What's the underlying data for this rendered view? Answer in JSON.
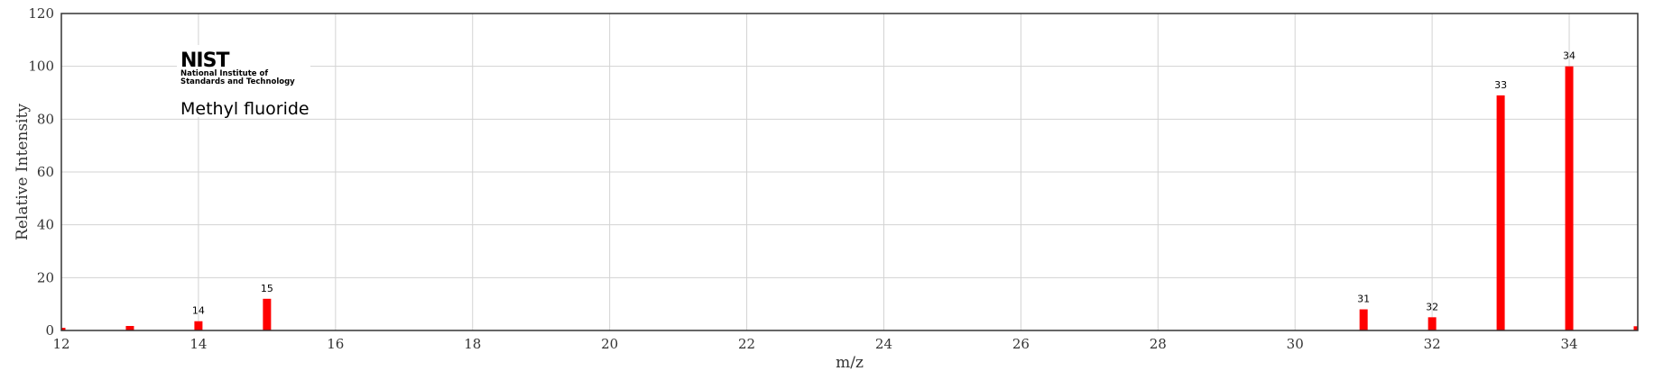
{
  "logo": {
    "mark": "NIST",
    "line1": "National Institute of",
    "line2": "Standards and Technology"
  },
  "compound_name": "Methyl fluoride",
  "chart_data": {
    "type": "bar",
    "title": "",
    "xlabel": "m/z",
    "ylabel": "Relative Intensity",
    "xlim": [
      12,
      35
    ],
    "ylim": [
      0,
      120
    ],
    "x_ticks": [
      12,
      14,
      16,
      18,
      20,
      22,
      24,
      26,
      28,
      30,
      32,
      34
    ],
    "y_ticks": [
      0,
      20,
      40,
      60,
      80,
      100,
      120
    ],
    "grid": true,
    "bar_color": "#ff0000",
    "peaks": [
      {
        "mz": 12,
        "intensity": 1.0,
        "label": ""
      },
      {
        "mz": 13,
        "intensity": 1.7,
        "label": ""
      },
      {
        "mz": 14,
        "intensity": 3.5,
        "label": "14"
      },
      {
        "mz": 15,
        "intensity": 12.0,
        "label": "15"
      },
      {
        "mz": 31,
        "intensity": 8.0,
        "label": "31"
      },
      {
        "mz": 32,
        "intensity": 5.0,
        "label": "32"
      },
      {
        "mz": 33,
        "intensity": 89.0,
        "label": "33"
      },
      {
        "mz": 34,
        "intensity": 100.0,
        "label": "34"
      },
      {
        "mz": 35,
        "intensity": 1.6,
        "label": ""
      }
    ]
  }
}
